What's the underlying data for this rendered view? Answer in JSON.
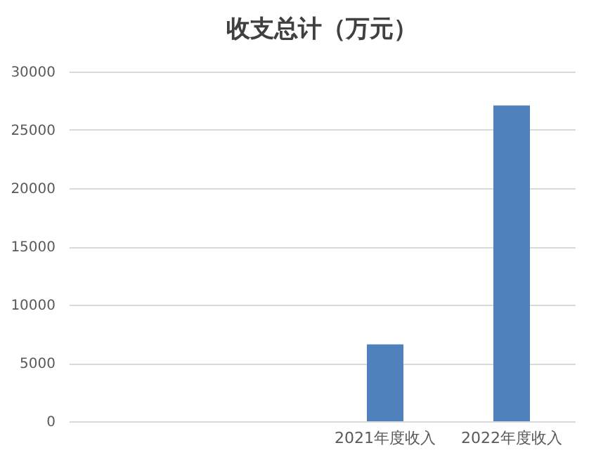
{
  "chart_data": {
    "type": "bar",
    "title": "收支总计（万元）",
    "categories": [
      null,
      null,
      "2021年度收入",
      "2022年度收入"
    ],
    "values": [
      null,
      null,
      6600,
      27100
    ],
    "color": "#4f81bd",
    "ylim": [
      0,
      30000
    ],
    "yticks": [
      0,
      5000,
      10000,
      15000,
      20000,
      25000,
      30000
    ],
    "grid": "y"
  }
}
